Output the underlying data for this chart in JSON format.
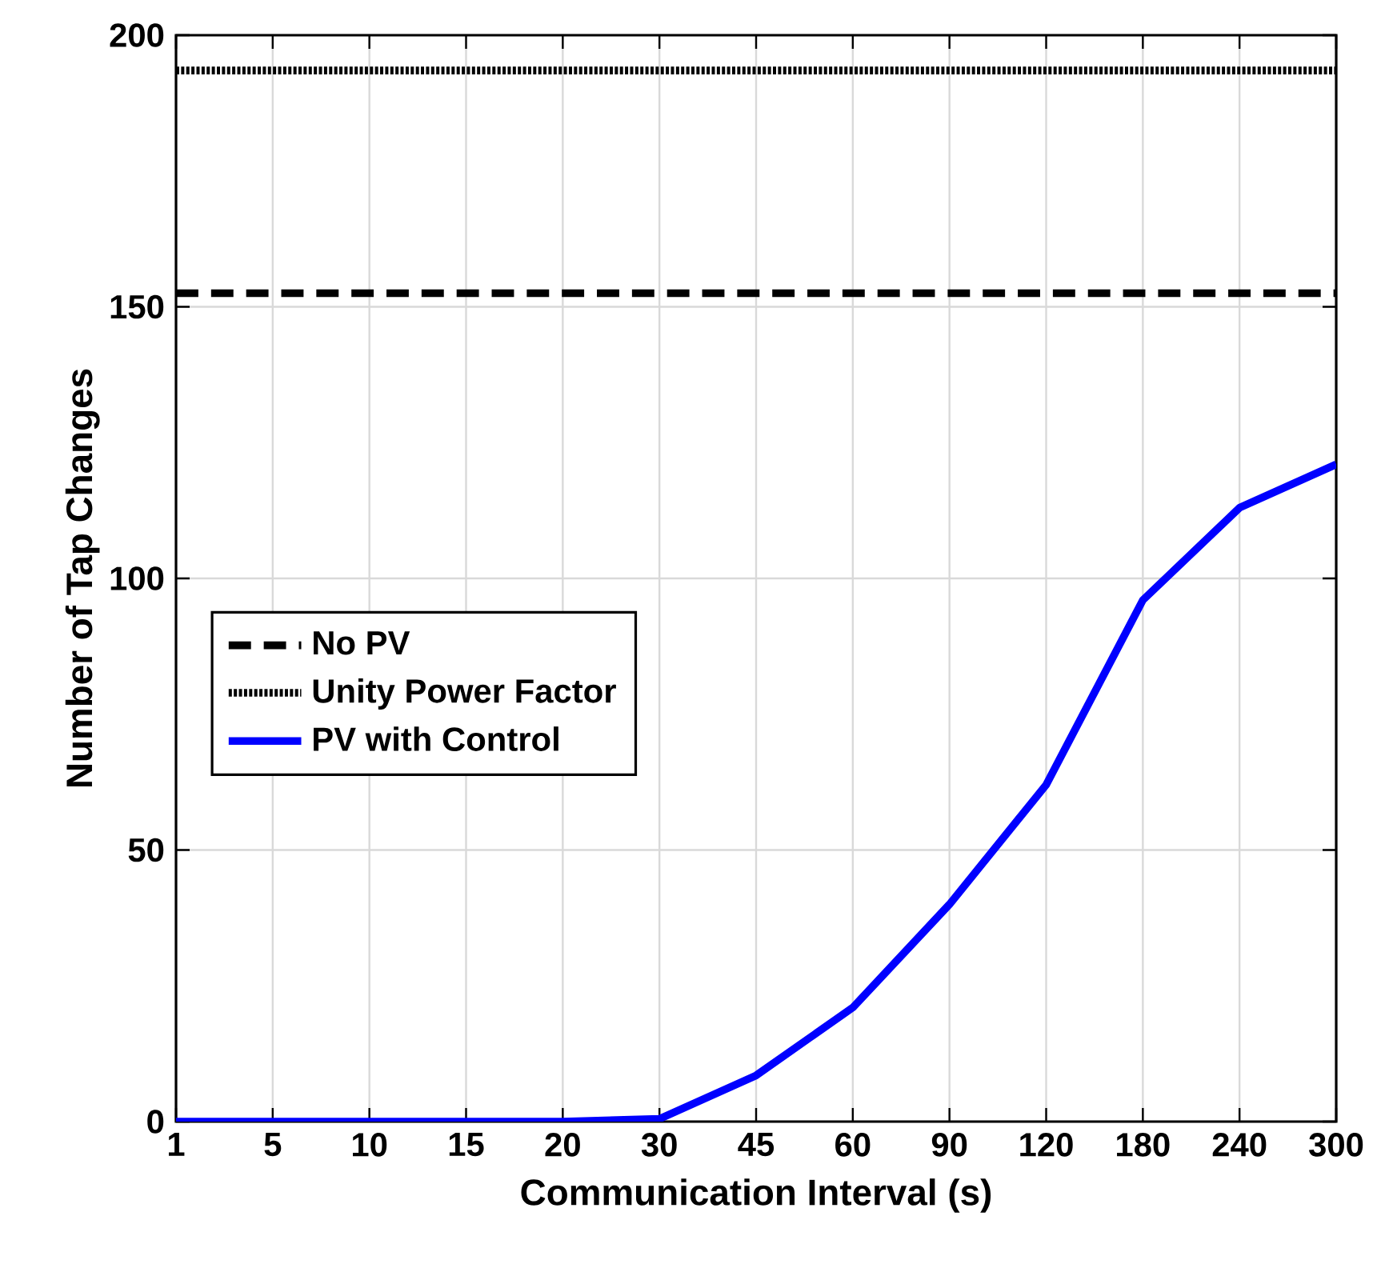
{
  "chart_data": {
    "type": "line",
    "xlabel": "Communication Interval (s)",
    "ylabel": "Number of Tap Changes",
    "categories": [
      "1",
      "5",
      "10",
      "15",
      "20",
      "30",
      "45",
      "60",
      "90",
      "120",
      "180",
      "240",
      "300"
    ],
    "series": [
      {
        "name": "No PV",
        "color": "#000000",
        "line_style": "dashed",
        "values": [
          152.5,
          152.5,
          152.5,
          152.5,
          152.5,
          152.5,
          152.5,
          152.5,
          152.5,
          152.5,
          152.5,
          152.5,
          152.5
        ]
      },
      {
        "name": "Unity Power Factor",
        "color": "#000000",
        "line_style": "dotted",
        "values": [
          193.5,
          193.5,
          193.5,
          193.5,
          193.5,
          193.5,
          193.5,
          193.5,
          193.5,
          193.5,
          193.5,
          193.5,
          193.5
        ]
      },
      {
        "name": "PV with Control",
        "color": "#0000ff",
        "line_style": "solid",
        "values": [
          0,
          0,
          0,
          0,
          0,
          0.5,
          8.5,
          21,
          40,
          62,
          96,
          113,
          121
        ]
      }
    ],
    "ylim": [
      0,
      200
    ],
    "yticks": [
      0,
      50,
      100,
      150,
      200
    ],
    "grid": true,
    "legend": "left",
    "marker": "none"
  }
}
